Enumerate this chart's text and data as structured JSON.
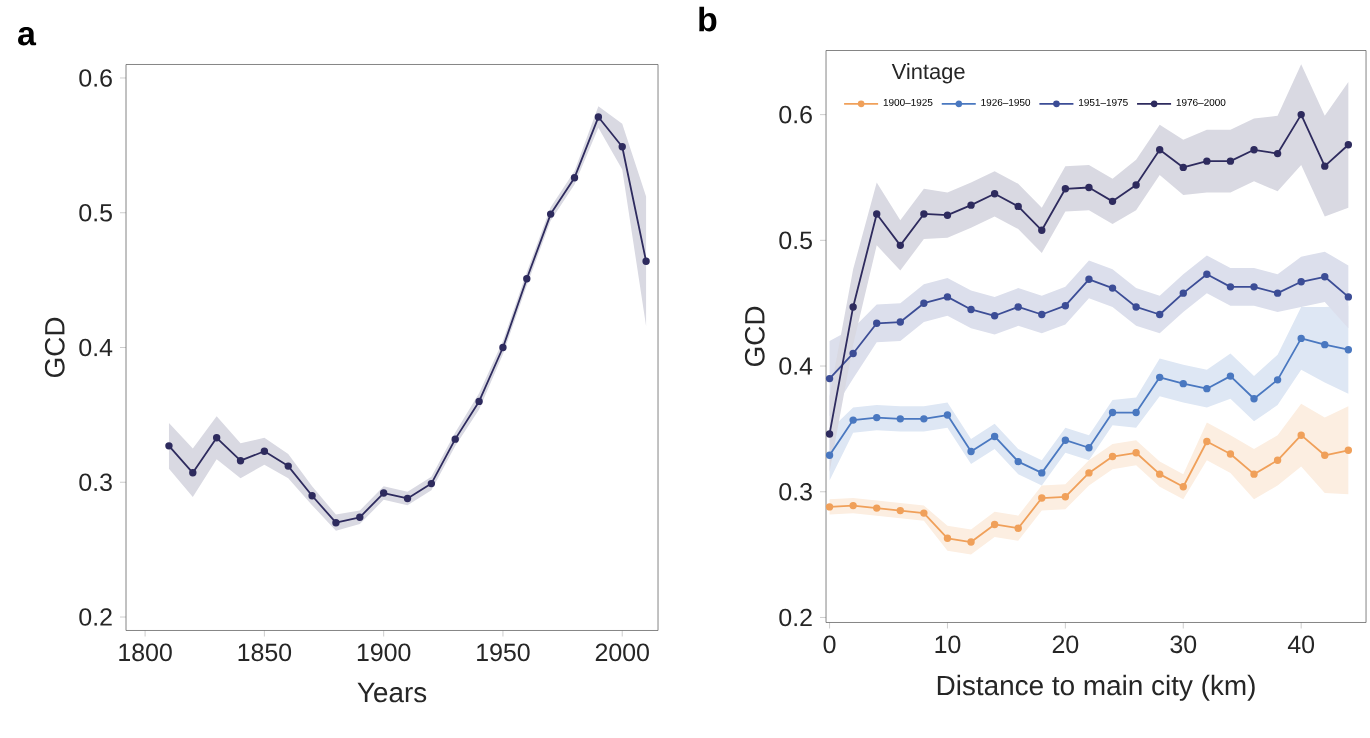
{
  "chart_data": [
    {
      "type": "line",
      "title": "a",
      "xlabel": "Years",
      "ylabel": "GCD",
      "xlim": [
        1792,
        2015
      ],
      "ylim": [
        0.19,
        0.61
      ],
      "xticks": [
        1800,
        1850,
        1900,
        1950,
        2000
      ],
      "yticks": [
        0.2,
        0.3,
        0.4,
        0.5,
        0.6
      ],
      "grid": false,
      "legend": false,
      "marker": "circle",
      "line_style": "solid",
      "x": [
        1810,
        1820,
        1830,
        1840,
        1850,
        1860,
        1870,
        1880,
        1890,
        1900,
        1910,
        1920,
        1930,
        1940,
        1950,
        1960,
        1970,
        1980,
        1990,
        2000,
        2010
      ],
      "series": [
        {
          "color": "#2e2b5e",
          "values": [
            0.327,
            0.307,
            0.333,
            0.316,
            0.323,
            0.312,
            0.29,
            0.27,
            0.274,
            0.292,
            0.288,
            0.299,
            0.332,
            0.36,
            0.4,
            0.451,
            0.499,
            0.526,
            0.571,
            0.549,
            0.464
          ],
          "lower": [
            0.31,
            0.289,
            0.317,
            0.303,
            0.313,
            0.303,
            0.283,
            0.264,
            0.269,
            0.287,
            0.283,
            0.294,
            0.327,
            0.354,
            0.395,
            0.446,
            0.494,
            0.521,
            0.563,
            0.532,
            0.416
          ],
          "upper": [
            0.344,
            0.325,
            0.349,
            0.329,
            0.333,
            0.321,
            0.297,
            0.276,
            0.279,
            0.297,
            0.293,
            0.304,
            0.337,
            0.366,
            0.405,
            0.456,
            0.504,
            0.531,
            0.579,
            0.566,
            0.512
          ]
        }
      ]
    },
    {
      "type": "line",
      "title": "b",
      "xlabel": "Distance to main city (km)",
      "ylabel": "GCD",
      "legend_title": "Vintage",
      "xlim": [
        -0.3,
        45.5
      ],
      "ylim": [
        0.196,
        0.651
      ],
      "xticks": [
        0,
        10,
        20,
        30,
        40
      ],
      "yticks": [
        0.2,
        0.3,
        0.4,
        0.5,
        0.6
      ],
      "grid": false,
      "legend": "top left",
      "marker": "circle",
      "line_style": "solid",
      "x": [
        0,
        2,
        4,
        6,
        8,
        10,
        12,
        14,
        16,
        18,
        20,
        22,
        24,
        26,
        28,
        30,
        32,
        34,
        36,
        38,
        40,
        42,
        44
      ],
      "series": [
        {
          "name": "1900–1925",
          "color": "#f0a05a",
          "values": [
            0.288,
            0.289,
            0.287,
            0.285,
            0.283,
            0.263,
            0.26,
            0.274,
            0.271,
            0.295,
            0.296,
            0.315,
            0.328,
            0.331,
            0.314,
            0.304,
            0.34,
            0.33,
            0.314,
            0.325,
            0.345,
            0.329,
            0.333
          ],
          "lower": [
            0.282,
            0.283,
            0.281,
            0.279,
            0.277,
            0.253,
            0.25,
            0.264,
            0.261,
            0.285,
            0.286,
            0.305,
            0.318,
            0.321,
            0.304,
            0.294,
            0.325,
            0.315,
            0.294,
            0.305,
            0.32,
            0.299,
            0.298
          ],
          "upper": [
            0.294,
            0.295,
            0.293,
            0.291,
            0.289,
            0.273,
            0.27,
            0.284,
            0.281,
            0.305,
            0.306,
            0.325,
            0.338,
            0.341,
            0.324,
            0.314,
            0.355,
            0.345,
            0.334,
            0.345,
            0.37,
            0.359,
            0.368
          ]
        },
        {
          "name": "1926–1950",
          "color": "#4a78c0",
          "values": [
            0.329,
            0.357,
            0.359,
            0.358,
            0.358,
            0.361,
            0.332,
            0.344,
            0.324,
            0.315,
            0.341,
            0.335,
            0.363,
            0.363,
            0.391,
            0.386,
            0.382,
            0.392,
            0.374,
            0.389,
            0.422,
            0.417,
            0.413
          ],
          "lower": [
            0.309,
            0.347,
            0.349,
            0.348,
            0.348,
            0.351,
            0.322,
            0.334,
            0.314,
            0.305,
            0.331,
            0.325,
            0.353,
            0.351,
            0.376,
            0.371,
            0.367,
            0.374,
            0.356,
            0.369,
            0.397,
            0.387,
            0.378
          ],
          "upper": [
            0.349,
            0.367,
            0.369,
            0.368,
            0.368,
            0.371,
            0.342,
            0.354,
            0.334,
            0.325,
            0.351,
            0.345,
            0.373,
            0.375,
            0.406,
            0.401,
            0.397,
            0.41,
            0.392,
            0.409,
            0.447,
            0.447,
            0.448
          ]
        },
        {
          "name": "1951–1975",
          "color": "#3c4d96",
          "values": [
            0.39,
            0.41,
            0.434,
            0.435,
            0.45,
            0.455,
            0.445,
            0.44,
            0.447,
            0.441,
            0.448,
            0.469,
            0.462,
            0.447,
            0.441,
            0.458,
            0.473,
            0.463,
            0.463,
            0.458,
            0.467,
            0.471,
            0.455
          ],
          "lower": [
            0.36,
            0.39,
            0.419,
            0.42,
            0.435,
            0.44,
            0.43,
            0.425,
            0.432,
            0.426,
            0.433,
            0.454,
            0.447,
            0.432,
            0.426,
            0.443,
            0.458,
            0.448,
            0.448,
            0.443,
            0.447,
            0.451,
            0.43
          ],
          "upper": [
            0.42,
            0.43,
            0.449,
            0.45,
            0.465,
            0.47,
            0.46,
            0.455,
            0.462,
            0.456,
            0.463,
            0.484,
            0.477,
            0.462,
            0.456,
            0.473,
            0.488,
            0.478,
            0.478,
            0.473,
            0.487,
            0.491,
            0.48
          ]
        },
        {
          "name": "1976–2000",
          "color": "#2e2b5e",
          "values": [
            0.346,
            0.447,
            0.521,
            0.496,
            0.521,
            0.52,
            0.528,
            0.537,
            0.527,
            0.508,
            0.541,
            0.542,
            0.531,
            0.544,
            0.572,
            0.558,
            0.563,
            0.563,
            0.572,
            0.569,
            0.6,
            0.559,
            0.576
          ],
          "lower": [
            0.316,
            0.417,
            0.496,
            0.476,
            0.501,
            0.502,
            0.51,
            0.519,
            0.509,
            0.49,
            0.523,
            0.524,
            0.513,
            0.524,
            0.552,
            0.536,
            0.538,
            0.538,
            0.547,
            0.539,
            0.56,
            0.519,
            0.526
          ],
          "upper": [
            0.376,
            0.477,
            0.546,
            0.516,
            0.541,
            0.538,
            0.546,
            0.555,
            0.545,
            0.526,
            0.559,
            0.56,
            0.549,
            0.564,
            0.592,
            0.58,
            0.588,
            0.588,
            0.597,
            0.599,
            0.64,
            0.599,
            0.626
          ]
        }
      ]
    }
  ]
}
